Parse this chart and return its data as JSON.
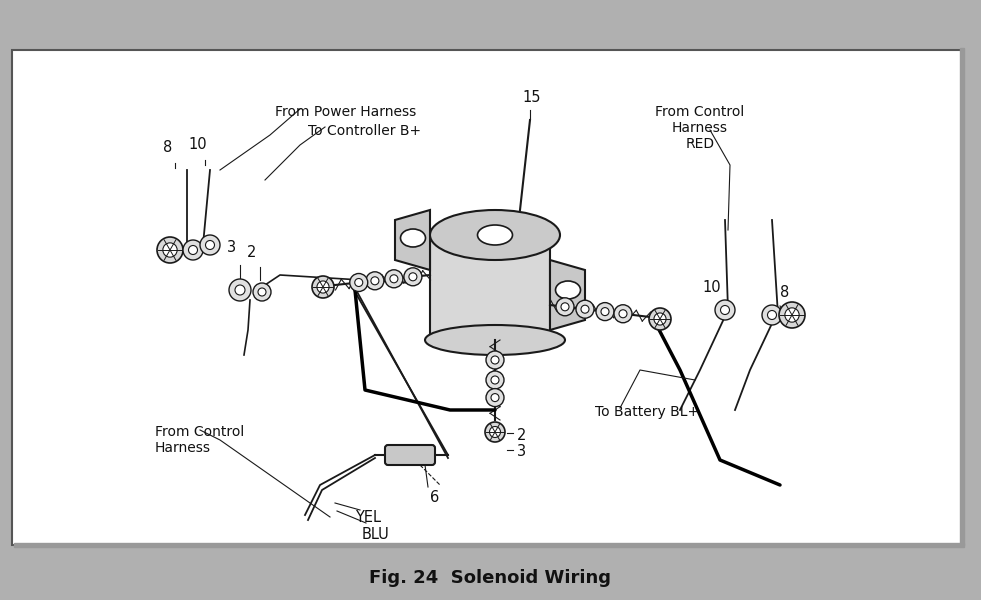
{
  "title": "Fig. 24  Solenoid Wiring",
  "bg_color": "#ffffff",
  "line_color": "#1a1a1a",
  "text_color": "#111111",
  "figsize": [
    9.81,
    6.0
  ],
  "dpi": 100,
  "labels": {
    "from_power_harness": "From Power Harness",
    "to_controller": "To Controller B+",
    "from_control_harness_red": "From Control\nHarness\nRED",
    "from_control_harness": "From Control\nHarness",
    "to_battery": "To Battery BL+",
    "yel": "YEL",
    "blu": "BLU",
    "num_15": "15",
    "num_8_left": "8",
    "num_10_left": "10",
    "num_3_left": "3",
    "num_2_left": "2",
    "num_6": "6",
    "num_2_bottom": "2",
    "num_3_bottom": "3",
    "num_10_right": "10",
    "num_8_right": "8"
  }
}
